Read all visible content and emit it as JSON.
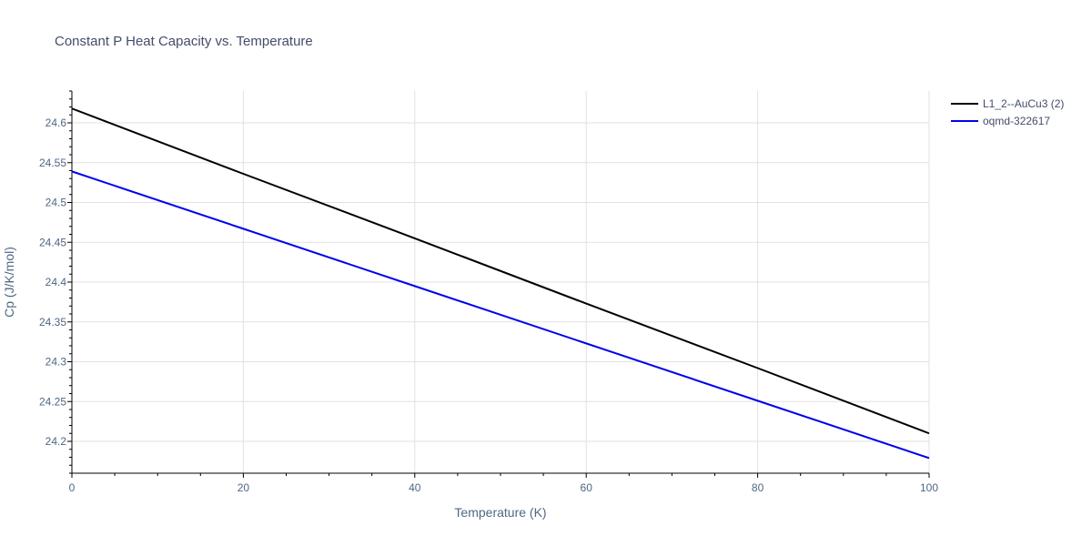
{
  "chart_data": {
    "type": "line",
    "title": "Constant P Heat Capacity vs. Temperature",
    "xlabel": "Temperature (K)",
    "ylabel": "Cp (J/K/mol)",
    "xlim": [
      0,
      100
    ],
    "ylim": [
      24.16,
      24.64
    ],
    "x_ticks": [
      0,
      20,
      40,
      60,
      80,
      100
    ],
    "x_tick_labels": [
      "0",
      "20",
      "40",
      "60",
      "80",
      "100"
    ],
    "y_ticks": [
      24.2,
      24.25,
      24.3,
      24.35,
      24.4,
      24.45,
      24.5,
      24.55,
      24.6
    ],
    "y_tick_labels": [
      "24.2",
      "24.25",
      "24.3",
      "24.35",
      "24.4",
      "24.45",
      "24.5",
      "24.55",
      "24.6"
    ],
    "grid": true,
    "legend_position": "top-right",
    "series": [
      {
        "name": "L1_2--AuCu3 (2)",
        "color": "#000000",
        "x": [
          0,
          20,
          40,
          60,
          80,
          100
        ],
        "y": [
          24.618,
          24.536,
          24.455,
          24.373,
          24.292,
          24.21
        ]
      },
      {
        "name": "oqmd-322617",
        "color": "#0000ee",
        "x": [
          0,
          20,
          40,
          60,
          80,
          100
        ],
        "y": [
          24.539,
          24.467,
          24.395,
          24.323,
          24.251,
          24.179
        ]
      }
    ]
  }
}
